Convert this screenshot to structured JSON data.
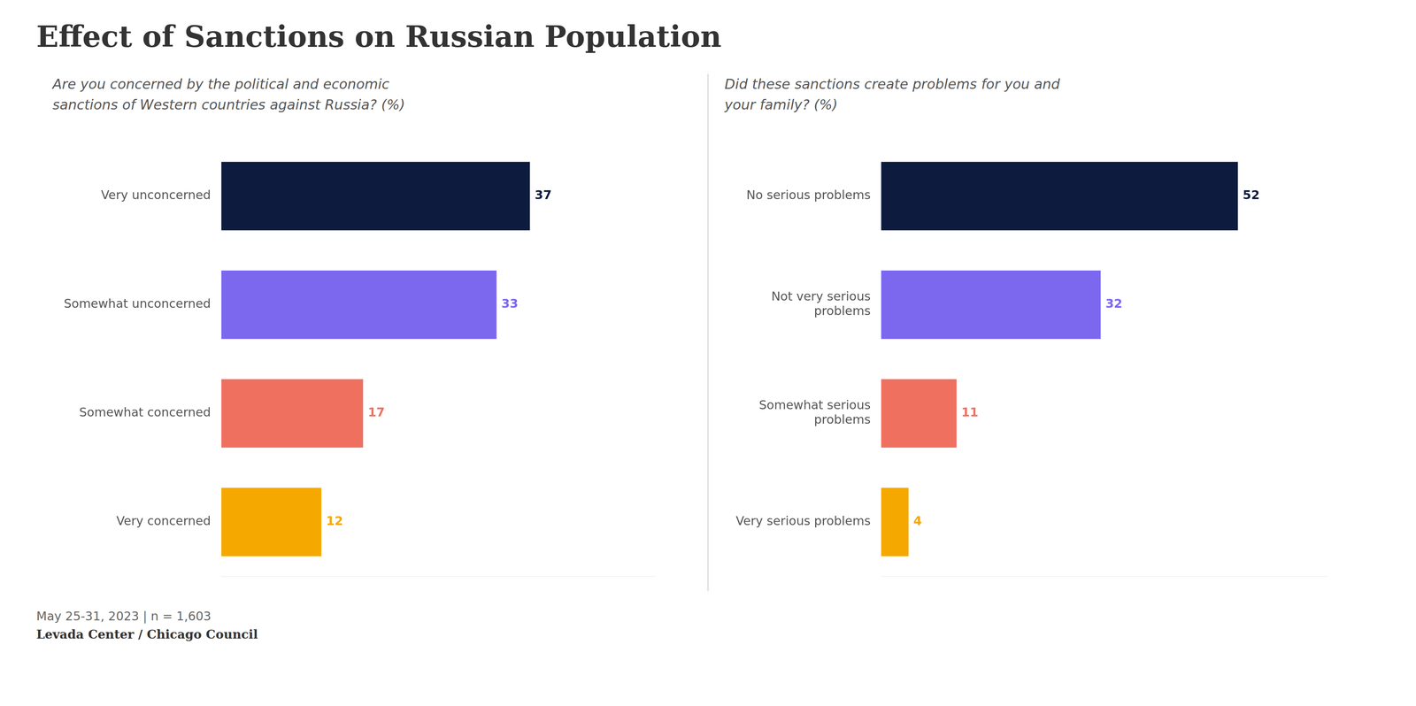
{
  "title": "Effect of Sanctions on Russian Population",
  "annotations": [
    "May 25-31, 2023 | n = 1,603",
    "Levada Center / Chicago Council"
  ],
  "chart_data": [
    {
      "type": "bar",
      "orientation": "horizontal",
      "subtitle": "Are you concerned by the political and economic\nsanctions of Western countries against Russia? (%)",
      "categories": [
        "Very concerned",
        "Somewhat concerned",
        "Somewhat unconcerned",
        "Very unconcerned"
      ],
      "values": [
        12,
        17,
        33,
        37
      ],
      "colors": [
        "#f5a800",
        "#f07060",
        "#7b68ee",
        "#0d1b3e"
      ],
      "xlim": [
        0,
        52
      ],
      "data_labels": true,
      "tick_labels": "y",
      "grid": false
    },
    {
      "type": "bar",
      "orientation": "horizontal",
      "subtitle": "Did these sanctions create problems for you and\nyour family? (%)",
      "categories": [
        "Very serious problems",
        "Somewhat serious\nproblems",
        "Not very serious\nproblems",
        "No serious problems"
      ],
      "values": [
        4,
        11,
        32,
        52
      ],
      "colors": [
        "#f5a800",
        "#f07060",
        "#7b68ee",
        "#0d1b3e"
      ],
      "xlim": [
        0,
        65
      ],
      "data_labels": true,
      "tick_labels": "y",
      "grid": false
    }
  ]
}
